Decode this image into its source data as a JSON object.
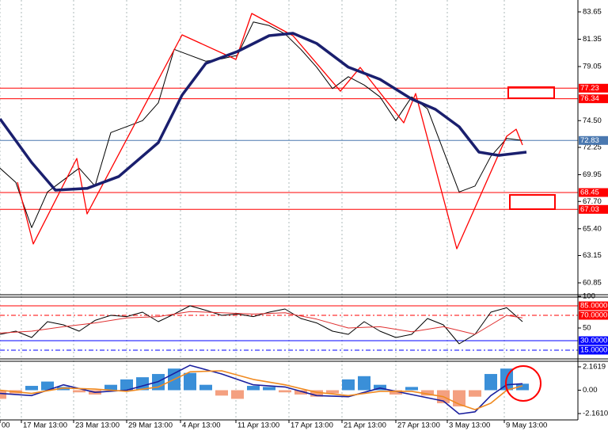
{
  "chart_data": [
    {
      "type": "line",
      "xlim": [
        0,
        146
      ],
      "xticks": [
        {
          "value": 0,
          "label": "00"
        },
        {
          "value": 5.4,
          "label": "17 Mar 13:00"
        },
        {
          "value": 18.6,
          "label": "23 Mar 13:00"
        },
        {
          "value": 32,
          "label": "29 Mar 13:00"
        },
        {
          "value": 45.6,
          "label": "4 Apr 13:00"
        },
        {
          "value": 59.6,
          "label": "11 Apr 13:00"
        },
        {
          "value": 73,
          "label": "17 Apr 13:00"
        },
        {
          "value": 86.4,
          "label": "21 Apr 13:00"
        },
        {
          "value": 100,
          "label": "27 Apr 13:00"
        },
        {
          "value": 113,
          "label": "3 May 13:00"
        },
        {
          "value": 127.4,
          "label": "9 May 13:00"
        }
      ],
      "ylim": [
        59.85,
        84.65
      ],
      "yticks": [
        83.65,
        81.35,
        79.05,
        {
          "value": 74.5,
          "label": "74.50"
        },
        72.25,
        69.95,
        {
          "value": 67.7,
          "label": "67.70"
        },
        {
          "value": 65.4,
          "label": "65.40"
        },
        63.15,
        60.85
      ],
      "levels": [
        {
          "value": 77.23,
          "color": "#ff0000"
        },
        {
          "value": 76.34,
          "color": "#ff0000"
        },
        {
          "value": 72.83,
          "color": "#4a78b0"
        },
        {
          "value": 68.45,
          "color": "#ff0000"
        },
        {
          "value": 67.03,
          "color": "#ff0000"
        }
      ],
      "series": [
        {
          "color": "#000000",
          "width": 1,
          "x": [
            0,
            4,
            8,
            12,
            16,
            20,
            24,
            28,
            32,
            36,
            40,
            44,
            48,
            52,
            56,
            60,
            64,
            68,
            72,
            76,
            80,
            84,
            88,
            92,
            96,
            100,
            104,
            108,
            112,
            116,
            120,
            124,
            128,
            132
          ],
          "values": [
            70.5,
            69.3,
            65.5,
            68.5,
            69.5,
            70.5,
            69.0,
            73.5,
            74.0,
            74.5,
            76.0,
            80.5,
            80.0,
            79.5,
            79.7,
            80.0,
            82.8,
            82.5,
            81.8,
            80.5,
            79.0,
            77.2,
            78.2,
            77.5,
            76.5,
            74.5,
            76.5,
            75.5,
            72.0,
            68.5,
            69.0,
            71.5,
            73.0,
            72.83
          ]
        },
        {
          "color": "#ff0000",
          "width": 1.3,
          "x": [
            4.4,
            8.4,
            19.4,
            22,
            46,
            59.6,
            63.6,
            74,
            86,
            91,
            102,
            105,
            115.4,
            128,
            130.4,
            132
          ],
          "values": [
            69.32,
            64.12,
            71.32,
            66.65,
            81.72,
            79.65,
            83.52,
            81.65,
            76.98,
            78.98,
            74.32,
            76.78,
            63.72,
            73.18,
            73.78,
            72.45
          ]
        },
        {
          "color": "#1a1f6e",
          "width": 3.5,
          "x": [
            0,
            8,
            14,
            22,
            30,
            40,
            46,
            52,
            60,
            68,
            74,
            80,
            88,
            96,
            104,
            110,
            116,
            121,
            126,
            133
          ],
          "values": [
            74.65,
            70.98,
            68.65,
            68.8,
            69.8,
            72.65,
            76.65,
            79.32,
            80.32,
            81.65,
            81.85,
            81.0,
            79.0,
            77.98,
            76.32,
            75.45,
            73.98,
            71.85,
            71.58,
            71.85
          ]
        }
      ]
    },
    {
      "type": "line",
      "xlim": [
        0,
        146
      ],
      "ylim": [
        2.5,
        100
      ],
      "yticks": [
        100,
        50
      ],
      "levels": [
        {
          "value": 85,
          "label": "85.0000",
          "color": "#ff0000"
        },
        {
          "value": 70,
          "label": "70.0000",
          "color": "#ff0000"
        },
        {
          "value": 30,
          "label": "30.0000",
          "color": "#0000ff"
        },
        {
          "value": 15,
          "label": "15.0000",
          "color": "#0000ff"
        }
      ],
      "series": [
        {
          "color": "#000000",
          "width": 1,
          "x": [
            0,
            4,
            8,
            12,
            16,
            20,
            24,
            28,
            32,
            36,
            40,
            44,
            48,
            52,
            56,
            60,
            64,
            68,
            72,
            76,
            80,
            84,
            88,
            92,
            96,
            100,
            104,
            108,
            112,
            116,
            120,
            124,
            128,
            132
          ],
          "values": [
            40,
            45,
            35,
            60,
            55,
            45,
            62,
            70,
            68,
            75,
            60,
            72,
            85,
            78,
            70,
            72,
            68,
            75,
            80,
            65,
            58,
            45,
            40,
            60,
            45,
            35,
            40,
            65,
            55,
            25,
            40,
            75,
            82,
            60
          ]
        },
        {
          "color": "#e03030",
          "width": 1,
          "x": [
            0,
            8,
            16,
            24,
            32,
            40,
            48,
            56,
            64,
            72,
            80,
            88,
            96,
            104,
            112,
            120,
            128,
            132
          ],
          "values": [
            42,
            45,
            52,
            58,
            66,
            68,
            76,
            74,
            72,
            74,
            64,
            50,
            52,
            44,
            52,
            40,
            70,
            66
          ]
        }
      ]
    },
    {
      "type": "bar",
      "xlim": [
        0,
        146
      ],
      "ylim": [
        -2.75,
        2.75
      ],
      "yticks": [
        2.1619,
        {
          "value": 0,
          "label": "0.00"
        },
        {
          "value": -2.161,
          "label": "-2.1610"
        }
      ],
      "series": [
        {
          "type": "bar",
          "colors": [
            "#3a8fd8",
            "#f4a080"
          ],
          "x": [
            0,
            4,
            8,
            12,
            16,
            20,
            24,
            28,
            32,
            36,
            40,
            44,
            48,
            52,
            56,
            60,
            64,
            68,
            72,
            76,
            80,
            84,
            88,
            92,
            96,
            100,
            104,
            108,
            112,
            116,
            120,
            124,
            128,
            132
          ],
          "values": [
            -0.8,
            -0.3,
            0.4,
            0.8,
            0.3,
            -0.2,
            -0.4,
            0.5,
            1.0,
            1.2,
            1.5,
            2.0,
            1.6,
            0.5,
            -0.5,
            -0.8,
            0.4,
            0.3,
            -0.2,
            -0.4,
            -0.6,
            -0.3,
            1.0,
            1.3,
            0.5,
            -0.4,
            0.3,
            -0.5,
            -1.2,
            -1.5,
            -0.6,
            1.5,
            2.0,
            0.6
          ]
        },
        {
          "type": "line",
          "color": "#1a1f9e",
          "width": 1.6,
          "x": [
            0,
            8,
            16,
            24,
            32,
            40,
            48,
            56,
            64,
            72,
            80,
            88,
            96,
            104,
            112,
            116,
            120,
            124,
            128,
            132
          ],
          "values": [
            -0.3,
            -0.5,
            0.5,
            -0.2,
            0,
            0.8,
            2.3,
            1.5,
            0.5,
            0.3,
            -0.5,
            -0.6,
            0.2,
            -0.4,
            -1.0,
            -2.2,
            -2.0,
            -0.5,
            0.5,
            0.6
          ]
        },
        {
          "type": "line",
          "color": "#f08a20",
          "width": 1.6,
          "x": [
            0,
            8,
            16,
            24,
            32,
            40,
            48,
            56,
            64,
            72,
            80,
            88,
            96,
            104,
            112,
            116,
            120,
            124,
            128,
            132
          ],
          "values": [
            0.0,
            -0.3,
            0.2,
            0.1,
            -0.1,
            0.3,
            1.7,
            1.8,
            1.0,
            0.5,
            -0.2,
            -0.5,
            -0.1,
            -0.1,
            -0.6,
            -1.3,
            -1.8,
            -1.2,
            0.0,
            0.4
          ]
        }
      ]
    }
  ]
}
